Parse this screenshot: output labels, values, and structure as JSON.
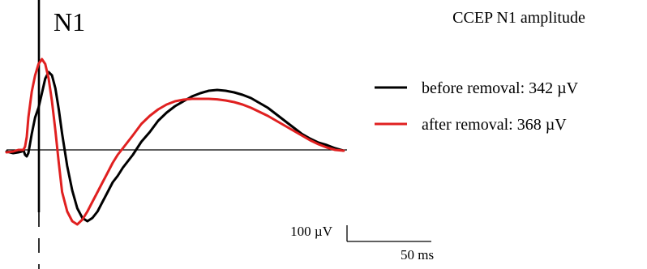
{
  "chart_data": {
    "type": "line",
    "title": "CCEP N1 amplitude",
    "peak_label": "N1",
    "xlabel": "",
    "ylabel": "",
    "xlim": [
      -10,
      192
    ],
    "ylim": [
      -500,
      750
    ],
    "grid": false,
    "legend_position": "right",
    "baseline_y": 0,
    "stim_x": 0,
    "series": [
      {
        "name": "before removal: 342 µV",
        "color": "#000000",
        "x": [
          -10,
          -6,
          -3,
          -1,
          0,
          1,
          2,
          3,
          5,
          7,
          9,
          11,
          13,
          15,
          17,
          19,
          21,
          23,
          26,
          29,
          32,
          35,
          38,
          41,
          44,
          47,
          50,
          53,
          56,
          59,
          62,
          65,
          70,
          75,
          80,
          85,
          90,
          95,
          100,
          105,
          110,
          115,
          120,
          125,
          130,
          135,
          140,
          145,
          150,
          155,
          160,
          165,
          170,
          175,
          180,
          185,
          190
        ],
        "y": [
          -10,
          -20,
          -15,
          -10,
          0,
          -30,
          -40,
          -20,
          100,
          200,
          260,
          350,
          440,
          480,
          460,
          380,
          250,
          100,
          -100,
          -250,
          -360,
          -420,
          -440,
          -420,
          -380,
          -320,
          -260,
          -200,
          -160,
          -110,
          -70,
          -30,
          50,
          110,
          180,
          230,
          270,
          300,
          330,
          350,
          365,
          370,
          365,
          355,
          340,
          320,
          290,
          260,
          220,
          180,
          140,
          100,
          70,
          45,
          30,
          10,
          -5
        ]
      },
      {
        "name": "after removal: 368 µV",
        "color": "#e02020",
        "x": [
          -10,
          -6,
          -3,
          -1,
          0,
          1,
          2,
          3,
          5,
          7,
          9,
          11,
          13,
          15,
          17,
          19,
          21,
          23,
          26,
          29,
          32,
          35,
          38,
          41,
          44,
          47,
          50,
          53,
          56,
          59,
          62,
          65,
          70,
          75,
          80,
          85,
          90,
          95,
          100,
          105,
          110,
          115,
          120,
          125,
          130,
          135,
          140,
          145,
          150,
          155,
          160,
          165,
          170,
          175,
          180,
          185,
          190
        ],
        "y": [
          -15,
          -10,
          0,
          0,
          0,
          20,
          80,
          200,
          360,
          460,
          530,
          560,
          530,
          440,
          300,
          120,
          -80,
          -260,
          -380,
          -440,
          -460,
          -430,
          -380,
          -320,
          -260,
          -200,
          -140,
          -80,
          -30,
          10,
          50,
          90,
          160,
          210,
          250,
          280,
          300,
          310,
          315,
          315,
          315,
          312,
          305,
          295,
          280,
          260,
          235,
          210,
          180,
          150,
          120,
          90,
          60,
          35,
          15,
          0,
          -5
        ]
      }
    ],
    "scale_bar": {
      "amplitude_label": "100 µV",
      "amplitude_value": 100,
      "time_label": "50 ms",
      "time_value": 50
    }
  }
}
